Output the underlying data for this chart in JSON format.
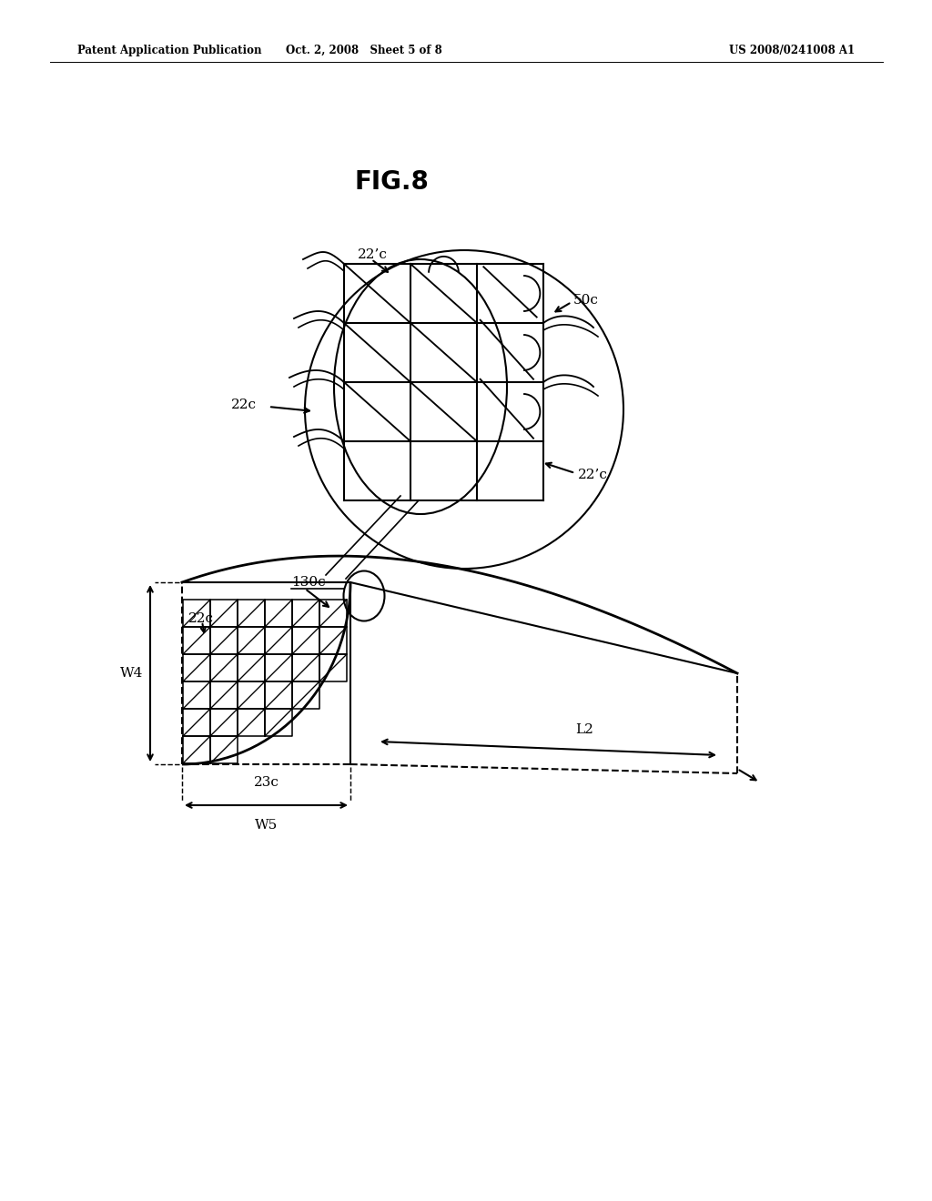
{
  "bg_color": "#ffffff",
  "line_color": "#000000",
  "header_left": "Patent Application Publication",
  "header_center": "Oct. 2, 2008   Sheet 5 of 8",
  "header_right": "US 2008/0241008 A1",
  "fig_label": "FIG.8",
  "label_22c_top": "22’c",
  "label_22c_left": "22c",
  "label_22c_right": "22’c",
  "label_50c": "50c",
  "label_130c": "130c",
  "label_W4": "W4",
  "label_W5": "W5",
  "label_23c": "23c",
  "label_L2": "L2",
  "label_22c_lower": "22c"
}
